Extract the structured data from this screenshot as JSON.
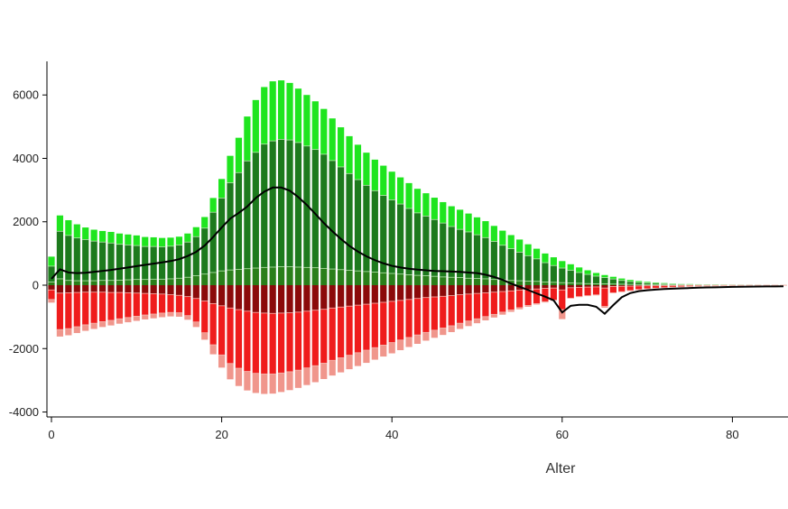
{
  "chart_data": {
    "type": "bar",
    "xlabel": "Alter",
    "ylabel": "",
    "xlim": [
      0,
      87
    ],
    "ylim": [
      -4000,
      7000
    ],
    "xticks": [
      0,
      20,
      40,
      60,
      80
    ],
    "yticks": [
      -4000,
      -2000,
      0,
      2000,
      4000,
      6000
    ],
    "grid": false,
    "stacked": true,
    "x": [
      0,
      1,
      2,
      3,
      4,
      5,
      6,
      7,
      8,
      9,
      10,
      11,
      12,
      13,
      14,
      15,
      16,
      17,
      18,
      19,
      20,
      21,
      22,
      23,
      24,
      25,
      26,
      27,
      28,
      29,
      30,
      31,
      32,
      33,
      34,
      35,
      36,
      37,
      38,
      39,
      40,
      41,
      42,
      43,
      44,
      45,
      46,
      47,
      48,
      49,
      50,
      51,
      52,
      53,
      54,
      55,
      56,
      57,
      58,
      59,
      60,
      61,
      62,
      63,
      64,
      65,
      66,
      67,
      68,
      69,
      70,
      71,
      72,
      73,
      74,
      75,
      76,
      77,
      78,
      79,
      80,
      81,
      82,
      83,
      84,
      85,
      86
    ],
    "series": [
      {
        "color": "#2a7f1a",
        "values": [
          100,
          200,
          150,
          140,
          140,
          140,
          150,
          150,
          160,
          170,
          180,
          180,
          190,
          190,
          200,
          220,
          250,
          300,
          350,
          400,
          450,
          480,
          500,
          520,
          540,
          560,
          570,
          580,
          580,
          570,
          560,
          550,
          530,
          510,
          490,
          470,
          450,
          430,
          410,
          390,
          370,
          350,
          330,
          310,
          300,
          280,
          260,
          250,
          240,
          220,
          210,
          200,
          180,
          170,
          150,
          140,
          130,
          120,
          100,
          90,
          80,
          70,
          60,
          50,
          45,
          40,
          35,
          30,
          25,
          20,
          18,
          15,
          12,
          10,
          8,
          7,
          6,
          5,
          4,
          3,
          3,
          2,
          2,
          1,
          1,
          1,
          1
        ]
      },
      {
        "color": "#1d7a1d",
        "values": [
          500,
          1500,
          1420,
          1350,
          1300,
          1250,
          1210,
          1180,
          1130,
          1100,
          1070,
          1040,
          1030,
          1020,
          1030,
          1050,
          1110,
          1230,
          1450,
          1900,
          2300,
          2750,
          3050,
          3400,
          3650,
          3890,
          3980,
          4020,
          4000,
          3930,
          3830,
          3730,
          3600,
          3420,
          3240,
          3050,
          2880,
          2720,
          2570,
          2440,
          2320,
          2210,
          2090,
          1970,
          1880,
          1790,
          1700,
          1600,
          1520,
          1460,
          1380,
          1300,
          1200,
          1090,
          1000,
          900,
          800,
          710,
          610,
          530,
          460,
          400,
          340,
          290,
          240,
          200,
          160,
          120,
          90,
          70,
          55,
          45,
          35,
          28,
          22,
          18,
          14,
          12,
          10,
          8,
          6,
          5,
          4,
          3,
          2,
          2,
          2
        ]
      },
      {
        "color": "#1fe51f",
        "values": [
          300,
          500,
          480,
          430,
          380,
          360,
          350,
          350,
          340,
          330,
          320,
          300,
          290,
          280,
          270,
          260,
          270,
          300,
          350,
          450,
          600,
          850,
          1100,
          1400,
          1650,
          1800,
          1880,
          1860,
          1800,
          1700,
          1610,
          1520,
          1430,
          1330,
          1250,
          1180,
          1100,
          1030,
          980,
          940,
          890,
          840,
          800,
          760,
          720,
          690,
          660,
          640,
          620,
          580,
          550,
          520,
          490,
          460,
          430,
          400,
          360,
          320,
          290,
          260,
          220,
          190,
          160,
          130,
          100,
          80,
          70,
          60,
          50,
          40,
          32,
          25,
          20,
          15,
          12,
          10,
          8,
          6,
          5,
          4,
          3,
          2,
          2,
          1,
          1,
          1,
          1
        ]
      },
      {
        "color": "#8b0a0a",
        "values": [
          -150,
          -250,
          -240,
          -230,
          -220,
          -220,
          -220,
          -230,
          -230,
          -240,
          -250,
          -260,
          -270,
          -280,
          -300,
          -320,
          -360,
          -420,
          -500,
          -580,
          -650,
          -720,
          -770,
          -820,
          -860,
          -880,
          -890,
          -880,
          -870,
          -850,
          -820,
          -790,
          -760,
          -720,
          -690,
          -660,
          -630,
          -600,
          -570,
          -540,
          -510,
          -480,
          -450,
          -420,
          -390,
          -370,
          -350,
          -330,
          -300,
          -280,
          -260,
          -240,
          -220,
          -200,
          -180,
          -160,
          -140,
          -120,
          -100,
          -90,
          -150,
          -80,
          -70,
          -60,
          -55,
          -90,
          -40,
          -35,
          -30,
          -25,
          -20,
          -18,
          -15,
          -12,
          -10,
          -8,
          -7,
          -6,
          -5,
          -4,
          -3,
          -3,
          -2,
          -2,
          -1,
          -1,
          -1
        ]
      },
      {
        "color": "#ef1c1c",
        "values": [
          -300,
          -1150,
          -1130,
          -1080,
          -1030,
          -980,
          -930,
          -880,
          -830,
          -780,
          -730,
          -680,
          -640,
          -600,
          -560,
          -550,
          -600,
          -740,
          -1000,
          -1300,
          -1550,
          -1750,
          -1850,
          -1900,
          -1920,
          -1920,
          -1910,
          -1890,
          -1860,
          -1830,
          -1790,
          -1750,
          -1700,
          -1650,
          -1600,
          -1550,
          -1500,
          -1450,
          -1400,
          -1350,
          -1300,
          -1250,
          -1200,
          -1150,
          -1100,
          -1050,
          -1000,
          -950,
          -900,
          -850,
          -800,
          -750,
          -700,
          -650,
          -600,
          -550,
          -500,
          -460,
          -420,
          -380,
          -620,
          -330,
          -290,
          -270,
          -250,
          -580,
          -200,
          -170,
          -140,
          -110,
          -90,
          -75,
          -62,
          -50,
          -40,
          -32,
          -26,
          -20,
          -16,
          -12,
          -10,
          -8,
          -6,
          -5,
          -4,
          -3,
          -2
        ]
      },
      {
        "color": "#f0968c",
        "values": [
          -100,
          -220,
          -210,
          -200,
          -190,
          -180,
          -170,
          -160,
          -155,
          -150,
          -145,
          -140,
          -135,
          -130,
          -125,
          -125,
          -130,
          -160,
          -220,
          -300,
          -400,
          -500,
          -560,
          -600,
          -620,
          -630,
          -620,
          -600,
          -580,
          -560,
          -540,
          -520,
          -500,
          -480,
          -460,
          -440,
          -420,
          -400,
          -380,
          -360,
          -340,
          -320,
          -300,
          -280,
          -260,
          -240,
          -220,
          -200,
          -180,
          -160,
          -140,
          -120,
          -100,
          -80,
          -60,
          -50,
          -40,
          -30,
          -25,
          -20,
          -300,
          -15,
          -12,
          -10,
          -8,
          -40,
          -6,
          -5,
          -4,
          -3,
          -3,
          -2,
          -2,
          -1,
          -1,
          -1,
          -1,
          -1,
          -1,
          0,
          0,
          0,
          0,
          0,
          0,
          0,
          0
        ]
      }
    ],
    "line": {
      "color": "#000000",
      "values": [
        200,
        500,
        400,
        380,
        390,
        420,
        450,
        480,
        520,
        560,
        600,
        640,
        680,
        720,
        760,
        820,
        920,
        1050,
        1250,
        1520,
        1820,
        2100,
        2280,
        2480,
        2750,
        2950,
        3080,
        3080,
        2980,
        2780,
        2530,
        2250,
        1960,
        1700,
        1460,
        1240,
        1060,
        910,
        790,
        690,
        610,
        560,
        520,
        490,
        470,
        450,
        440,
        430,
        420,
        400,
        380,
        330,
        260,
        170,
        50,
        -50,
        -150,
        -260,
        -360,
        -480,
        -860,
        -650,
        -620,
        -620,
        -680,
        -900,
        -630,
        -380,
        -250,
        -190,
        -160,
        -140,
        -120,
        -110,
        -100,
        -90,
        -80,
        -72,
        -66,
        -60,
        -55,
        -50,
        -45,
        -42,
        -40,
        -38,
        -35
      ]
    }
  }
}
